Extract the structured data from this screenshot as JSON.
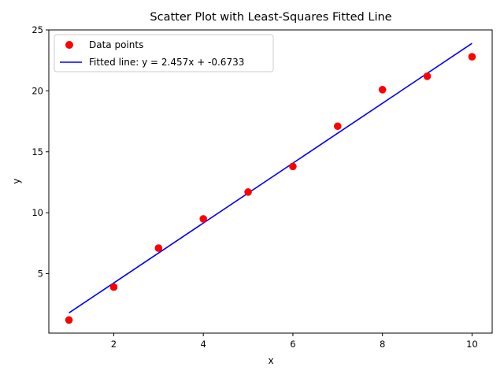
{
  "chart_data": {
    "type": "scatter",
    "title": "Scatter Plot with Least-Squares Fitted Line",
    "xlabel": "x",
    "ylabel": "y",
    "xlim": [
      0.55,
      10.45
    ],
    "ylim": [
      0.125,
      25
    ],
    "xticks": [
      2,
      4,
      6,
      8,
      10
    ],
    "yticks": [
      5,
      10,
      15,
      20,
      25
    ],
    "grid": false,
    "legend_position": "top-left",
    "series": [
      {
        "name": "Data points",
        "kind": "scatter",
        "color": "#ff0000",
        "x": [
          1,
          2,
          3,
          4,
          5,
          6,
          7,
          8,
          9,
          10
        ],
        "y": [
          1.2,
          3.9,
          7.1,
          9.5,
          11.7,
          13.8,
          17.1,
          20.1,
          21.2,
          22.8
        ]
      },
      {
        "name": "Fitted line: y = 2.457x + -0.6733",
        "kind": "line",
        "color": "#0000ff",
        "x": [
          1,
          10
        ],
        "y": [
          1.7837,
          23.8967
        ]
      }
    ]
  }
}
